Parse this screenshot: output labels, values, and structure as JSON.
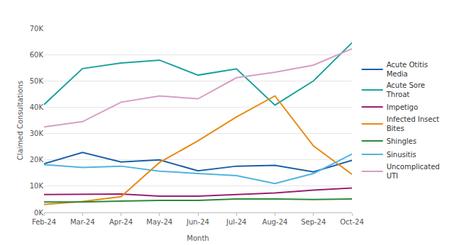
{
  "chart_data": {
    "type": "line",
    "x_label": "Month",
    "y_label": "Claimed Consultations",
    "categories": [
      "Feb-24",
      "Mar-24",
      "Apr-24",
      "May-24",
      "Jun-24",
      "Jul-24",
      "Aug-24",
      "Sep-24",
      "Oct-24"
    ],
    "series": [
      {
        "name": "Acute Otitis Media",
        "color": "#1a5fa8",
        "values": [
          18500,
          22800,
          19200,
          20000,
          15800,
          17600,
          17900,
          15400,
          19800
        ]
      },
      {
        "name": "Acute Sore Throat",
        "color": "#1aa39a",
        "values": [
          41000,
          54700,
          56800,
          57900,
          52200,
          54600,
          40800,
          50000,
          64500
        ]
      },
      {
        "name": "Impetigo",
        "color": "#9b1f6e",
        "values": [
          6800,
          6800,
          7000,
          6200,
          6200,
          6800,
          7400,
          8500,
          9300
        ]
      },
      {
        "name": "Infected Insect Bites",
        "color": "#e88a10",
        "values": [
          3000,
          4200,
          6000,
          19000,
          27200,
          36300,
          44300,
          25300,
          14500
        ]
      },
      {
        "name": "Shingles",
        "color": "#2a8a3a",
        "values": [
          4000,
          4000,
          4300,
          4600,
          4600,
          5100,
          5100,
          4900,
          5100
        ]
      },
      {
        "name": "Sinusitis",
        "color": "#4fb3e0",
        "values": [
          18200,
          17100,
          17600,
          15700,
          14800,
          14000,
          11000,
          14800,
          22200
        ]
      },
      {
        "name": "Uncomplicated UTI",
        "color": "#d69ec4",
        "values": [
          32500,
          34500,
          41900,
          44300,
          43200,
          51200,
          53300,
          56000,
          62200
        ]
      }
    ],
    "ylim": [
      0,
      70000
    ],
    "yticks": [
      {
        "value": 0,
        "label": "0K"
      },
      {
        "value": 10000,
        "label": "10K"
      },
      {
        "value": 20000,
        "label": "20K"
      },
      {
        "value": 30000,
        "label": "30K"
      },
      {
        "value": 40000,
        "label": "40K"
      },
      {
        "value": 50000,
        "label": "50K"
      },
      {
        "value": 60000,
        "label": "60K"
      },
      {
        "value": 70000,
        "label": "70K"
      }
    ],
    "grid": true,
    "legend": "right"
  }
}
